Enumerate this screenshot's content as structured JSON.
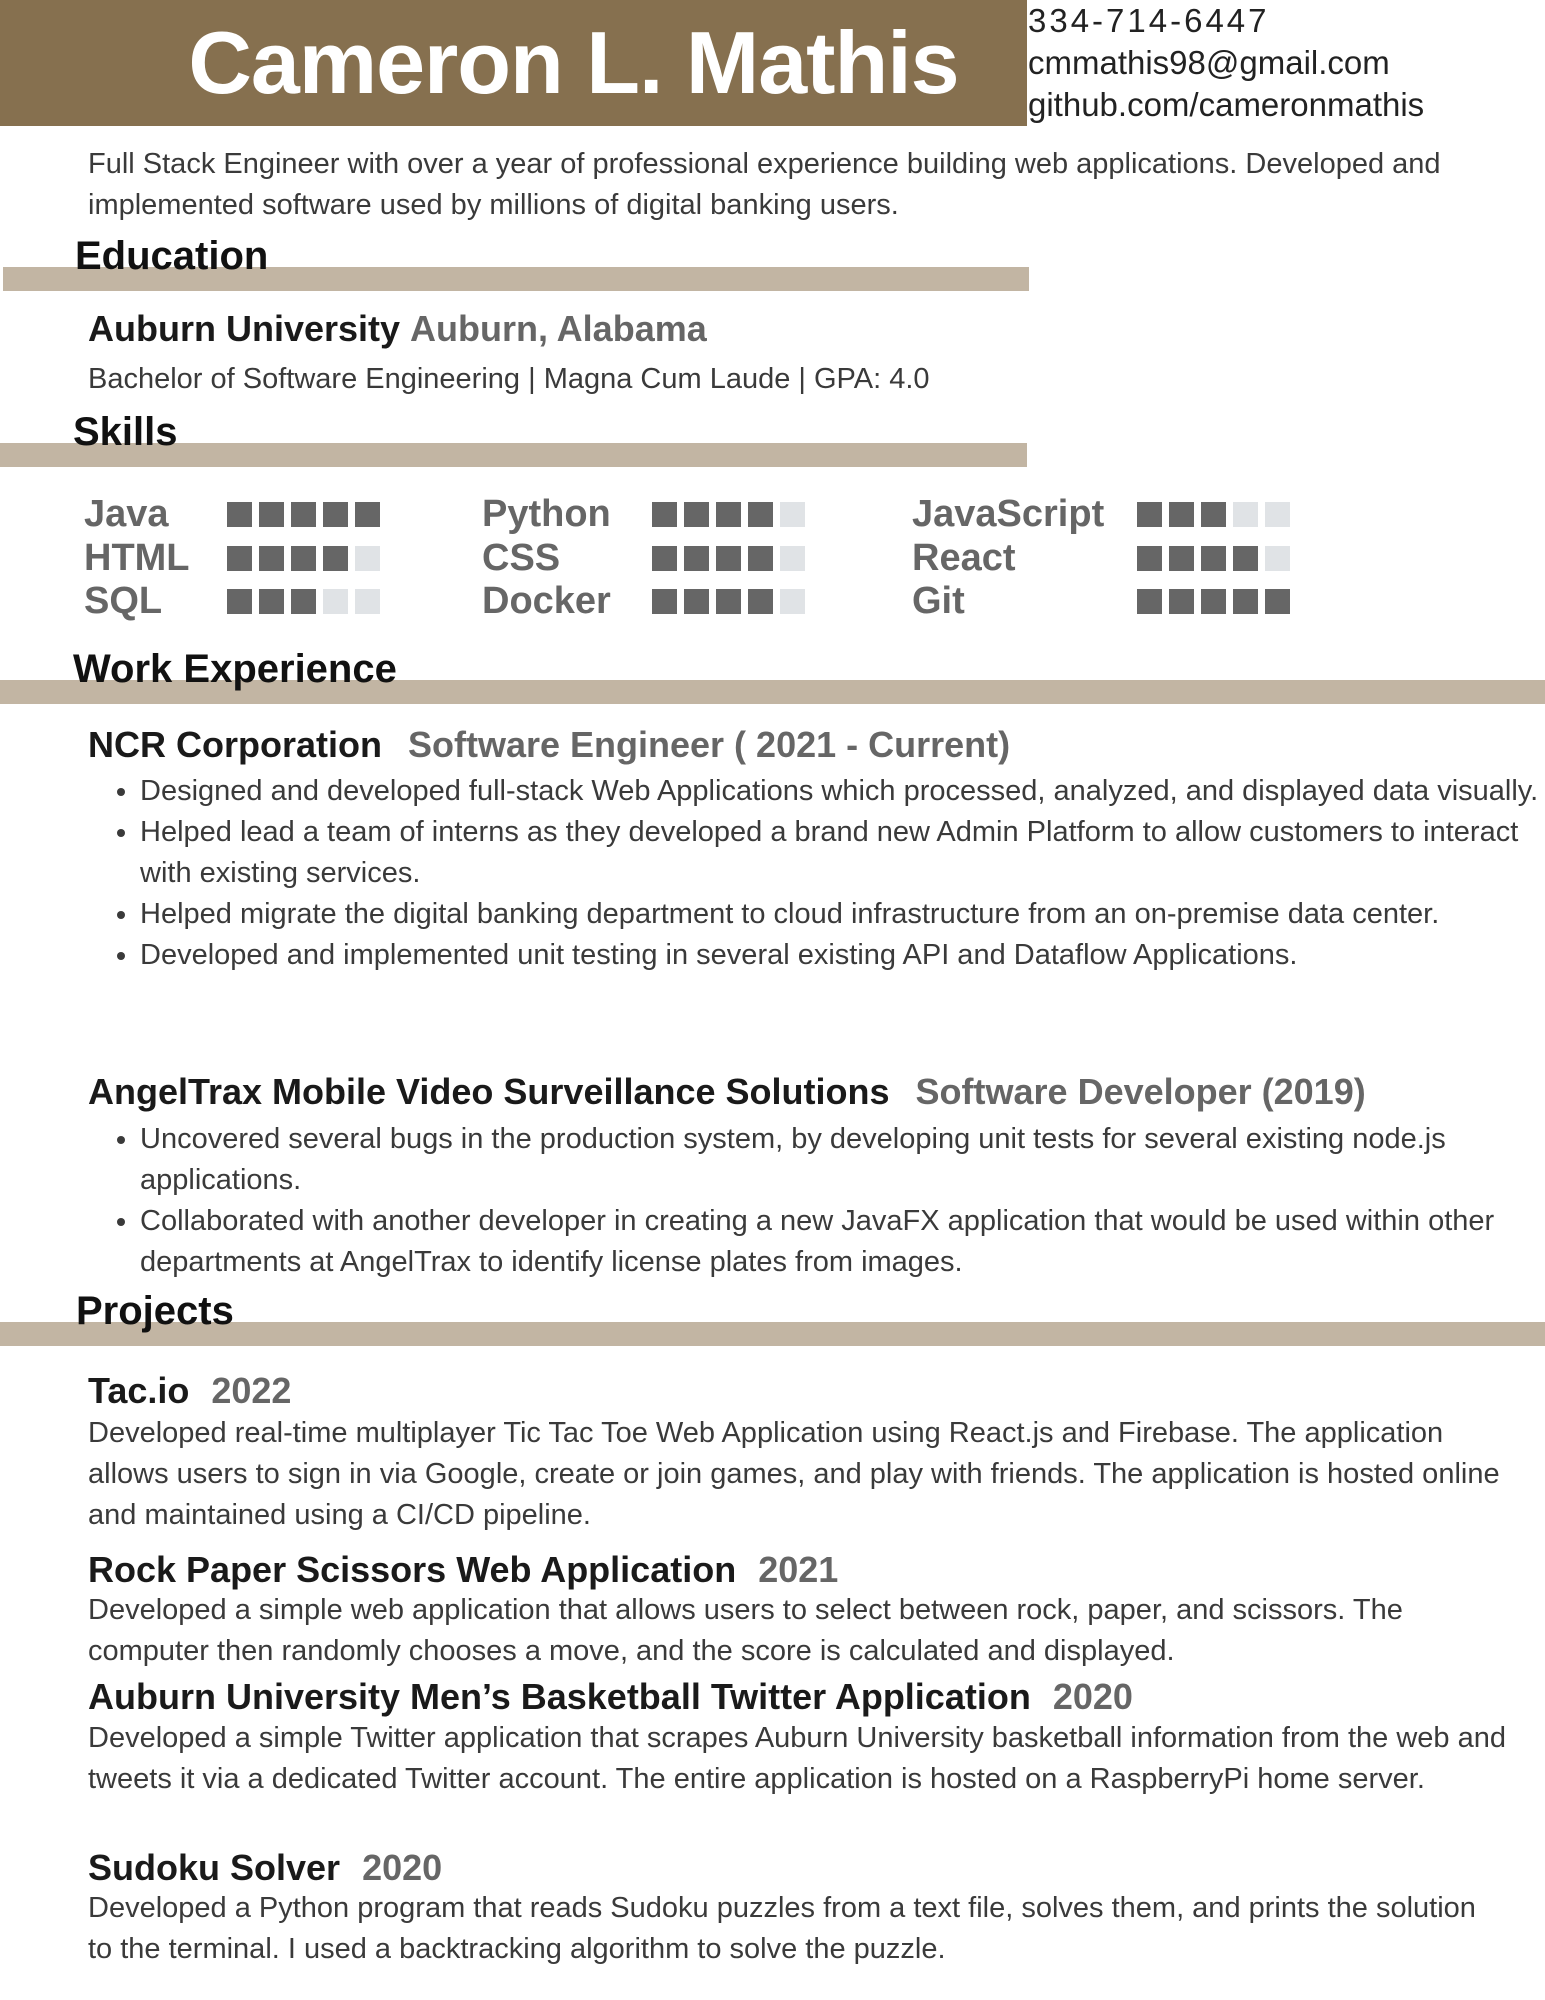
{
  "header": {
    "name": "Cameron L. Mathis",
    "contact": [
      "334-714-6447",
      "cmmathis98@gmail.com",
      "github.com/cameronmathis"
    ]
  },
  "summary": "Full Stack Engineer with over a year of professional experience building web applications. Developed and implemented software used by millions of digital banking users.",
  "education": {
    "heading": "Education",
    "school": "Auburn University",
    "location": "Auburn, Alabama",
    "details": "Bachelor of Software Engineering | Magna Cum Laude | GPA: 4.0"
  },
  "skills": {
    "heading": "Skills",
    "scale": 5,
    "columns": [
      [
        {
          "name": "Java",
          "level": 5
        },
        {
          "name": "HTML",
          "level": 4
        },
        {
          "name": "SQL",
          "level": 3
        }
      ],
      [
        {
          "name": "Python",
          "level": 4
        },
        {
          "name": "CSS",
          "level": 4
        },
        {
          "name": "Docker",
          "level": 4
        }
      ],
      [
        {
          "name": "JavaScript",
          "level": 3
        },
        {
          "name": "React",
          "level": 4
        },
        {
          "name": "Git",
          "level": 5
        }
      ]
    ]
  },
  "work": {
    "heading": "Work Experience",
    "jobs": [
      {
        "company": "NCR Corporation",
        "role": "Software Engineer ( 2021 - Current)",
        "bullets": [
          "Designed and developed full-stack Web Applications which processed, analyzed, and displayed data visually.",
          "Helped lead a team of interns as they developed a brand new Admin Platform to allow customers to interact with existing services.",
          "Helped migrate the digital banking department to cloud infrastructure from an on-premise data center.",
          "Developed and implemented unit testing in several existing API and Dataflow Applications."
        ]
      },
      {
        "company": "AngelTrax Mobile Video Surveillance Solutions",
        "role": "Software Developer (2019)",
        "bullets": [
          "Uncovered several bugs in the production system, by developing unit tests for several existing node.js applications.",
          "Collaborated with another developer in creating a new JavaFX application that would be used within other departments at AngelTrax to identify license plates from images."
        ]
      }
    ]
  },
  "projects": {
    "heading": "Projects",
    "items": [
      {
        "title": "Tac.io",
        "year": "2022",
        "description": "Developed real-time multiplayer Tic Tac Toe Web Application using React.js and Firebase. The application allows users to sign in via Google, create or join games, and play with friends. The application is hosted online and maintained using a CI/CD pipeline."
      },
      {
        "title": "Rock Paper Scissors Web Application",
        "year": "2021",
        "description": "Developed a simple web application that allows users to select between rock, paper, and scissors. The computer then randomly chooses a move, and the score is calculated and displayed."
      },
      {
        "title": "Auburn University Men’s Basketball Twitter Application",
        "year": "2020",
        "description": "Developed a simple Twitter application that scrapes Auburn University basketball information from the web and tweets it via a dedicated Twitter account. The entire application is hosted on a RaspberryPi home server."
      },
      {
        "title": "Sudoku Solver",
        "year": "2020",
        "description": "Developed a Python program that reads Sudoku puzzles from a text file, solves them, and prints the solution to the terminal. I used a backtracking algorithm to solve the puzzle."
      }
    ]
  }
}
